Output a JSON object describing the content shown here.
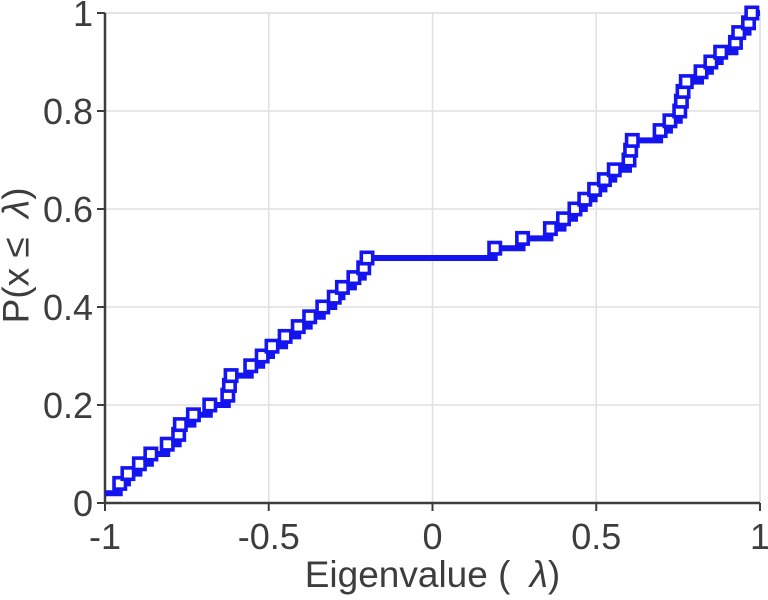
{
  "chart_data": {
    "type": "line",
    "variant": "empirical-cdf-stairs",
    "title": "",
    "xlabel": "Eigenvalue ( λ)",
    "ylabel": "P(x ≤ λ)",
    "xlabel_parts": {
      "prefix": "Eigenvalue ( ",
      "lambda": "λ",
      "suffix": ")"
    },
    "ylabel_parts": {
      "prefix": "P(x ≤ ",
      "lambda": "λ",
      "suffix": ")"
    },
    "xlim": [
      -1,
      1
    ],
    "ylim": [
      0,
      1
    ],
    "x_ticks": [
      -1,
      -0.5,
      0,
      0.5,
      1
    ],
    "x_tick_labels": [
      "-1",
      "-0.5",
      "0",
      "0.5",
      "1"
    ],
    "y_ticks": [
      0,
      0.2,
      0.4,
      0.6,
      0.8,
      1
    ],
    "y_tick_labels": [
      "0",
      "0.2",
      "0.4",
      "0.6",
      "0.8",
      "1"
    ],
    "grid": true,
    "legend": null,
    "colors": {
      "line": "#1414f0",
      "marker_fill": "#ffffff",
      "axis": "#3d3d3d",
      "grid": "#e0e0e0",
      "text": "#3d3d3d",
      "background": "#ffffff"
    },
    "series": [
      {
        "name": "eigenvalue-cdf",
        "marker": "hollow-square",
        "points": [
          [
            -1.0,
            0.02
          ],
          [
            -0.955,
            0.04
          ],
          [
            -0.93,
            0.06
          ],
          [
            -0.895,
            0.08
          ],
          [
            -0.86,
            0.1
          ],
          [
            -0.81,
            0.12
          ],
          [
            -0.775,
            0.14
          ],
          [
            -0.77,
            0.16
          ],
          [
            -0.73,
            0.18
          ],
          [
            -0.68,
            0.2
          ],
          [
            -0.625,
            0.22
          ],
          [
            -0.62,
            0.24
          ],
          [
            -0.615,
            0.26
          ],
          [
            -0.555,
            0.28
          ],
          [
            -0.52,
            0.3
          ],
          [
            -0.49,
            0.32
          ],
          [
            -0.45,
            0.34
          ],
          [
            -0.41,
            0.36
          ],
          [
            -0.375,
            0.38
          ],
          [
            -0.335,
            0.4
          ],
          [
            -0.3,
            0.42
          ],
          [
            -0.275,
            0.44
          ],
          [
            -0.24,
            0.46
          ],
          [
            -0.21,
            0.48
          ],
          [
            -0.2,
            0.5
          ],
          [
            0.19,
            0.52
          ],
          [
            0.275,
            0.54
          ],
          [
            0.36,
            0.56
          ],
          [
            0.4,
            0.58
          ],
          [
            0.435,
            0.6
          ],
          [
            0.465,
            0.62
          ],
          [
            0.495,
            0.64
          ],
          [
            0.525,
            0.66
          ],
          [
            0.555,
            0.68
          ],
          [
            0.6,
            0.7
          ],
          [
            0.605,
            0.72
          ],
          [
            0.61,
            0.74
          ],
          [
            0.695,
            0.76
          ],
          [
            0.725,
            0.78
          ],
          [
            0.755,
            0.8
          ],
          [
            0.76,
            0.82
          ],
          [
            0.765,
            0.84
          ],
          [
            0.775,
            0.86
          ],
          [
            0.82,
            0.88
          ],
          [
            0.85,
            0.9
          ],
          [
            0.88,
            0.92
          ],
          [
            0.925,
            0.94
          ],
          [
            0.935,
            0.96
          ],
          [
            0.965,
            0.98
          ],
          [
            0.975,
            1.0
          ]
        ]
      }
    ]
  }
}
